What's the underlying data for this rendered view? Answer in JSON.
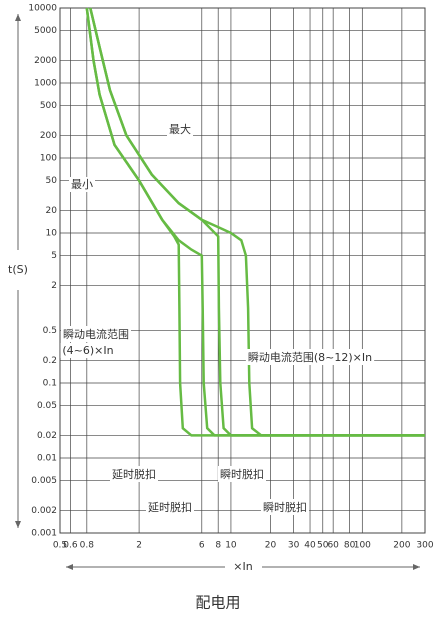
{
  "chart_data": {
    "type": "line",
    "x_label": "×In",
    "y_label": "t(S)",
    "caption": "配电用",
    "xscale": "log",
    "yscale": "log",
    "grid": true,
    "xlim": [
      0.5,
      300
    ],
    "ylim": [
      0.001,
      10000
    ],
    "xticks": [
      0.5,
      0.6,
      0.8,
      2,
      6,
      8,
      10,
      20,
      30,
      40,
      50,
      60,
      80,
      100,
      200,
      300
    ],
    "yticks": [
      10000,
      5000,
      2000,
      1000,
      500,
      200,
      100,
      50,
      20,
      10,
      5,
      2,
      0.5,
      0.2,
      0.1,
      0.05,
      0.02,
      0.01,
      0.005,
      0.002,
      0.001
    ],
    "series": [
      {
        "color": "#66bb44",
        "x": [
          0.8,
          0.9,
          1,
          1.3,
          2,
          3,
          3.7,
          4,
          4.05,
          4.1,
          4.3,
          5,
          300
        ],
        "values": [
          10000,
          2000,
          700,
          150,
          50,
          15,
          9,
          7,
          1,
          0.1,
          0.025,
          0.02,
          0.02
        ]
      },
      {
        "color": "#66bb44",
        "x": [
          0.8,
          0.9,
          1,
          1.3,
          2,
          3,
          4,
          5,
          6,
          6.1,
          6.2,
          6.6,
          7.5,
          300
        ],
        "values": [
          10000,
          2000,
          700,
          150,
          50,
          15,
          8,
          6,
          5,
          1,
          0.1,
          0.025,
          0.02,
          0.02
        ]
      },
      {
        "color": "#66bb44",
        "x": [
          0.85,
          1,
          1.2,
          1.6,
          2.5,
          4,
          6,
          8,
          8.1,
          8.3,
          8.8,
          10,
          300
        ],
        "values": [
          10000,
          3000,
          800,
          200,
          60,
          25,
          15,
          9,
          1,
          0.1,
          0.025,
          0.02,
          0.02
        ]
      },
      {
        "color": "#66bb44",
        "x": [
          0.85,
          1,
          1.2,
          1.6,
          2.5,
          4,
          6,
          8,
          10,
          12,
          13,
          13.5,
          13.8,
          14.5,
          17,
          300
        ],
        "values": [
          10000,
          3000,
          800,
          200,
          60,
          25,
          15,
          12,
          10,
          8,
          5,
          1,
          0.1,
          0.025,
          0.02,
          0.02
        ]
      }
    ],
    "annotations": [
      "最大",
      "最小",
      "瞬动电流范围",
      "(4~6)×In",
      "瞬动电流范围(8~12)×In",
      "延时脱扣",
      "瞬时脱扣",
      "延时脱扣",
      "瞬时脱扣"
    ]
  }
}
